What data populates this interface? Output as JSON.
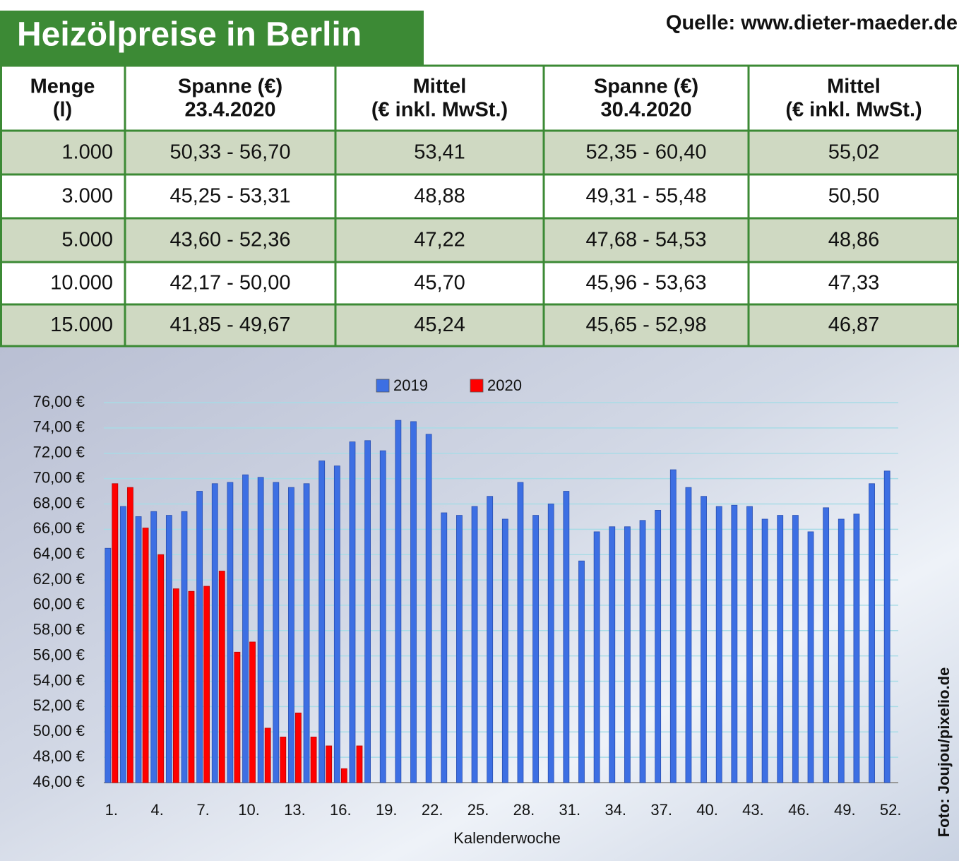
{
  "header": {
    "title": "Heizölpreise in Berlin",
    "source": "Quelle: www.dieter-maeder.de"
  },
  "table": {
    "header": [
      [
        "Menge",
        "(l)"
      ],
      [
        "Spanne (€)",
        "23.4.2020"
      ],
      [
        "Mittel",
        "(€ inkl. MwSt.)"
      ],
      [
        "Spanne (€)",
        "30.4.2020"
      ],
      [
        "Mittel",
        "(€ inkl. MwSt.)"
      ]
    ],
    "rows": [
      [
        "1.000",
        "50,33 - 56,70",
        "53,41",
        "52,35 - 60,40",
        "55,02"
      ],
      [
        "3.000",
        "45,25 - 53,31",
        "48,88",
        "49,31 - 55,48",
        "50,50"
      ],
      [
        "5.000",
        "43,60 - 52,36",
        "47,22",
        "47,68 - 54,53",
        "48,86"
      ],
      [
        "10.000",
        "42,17 - 50,00",
        "45,70",
        "45,96 - 53,63",
        "47,33"
      ],
      [
        "15.000",
        "41,85 - 49,67",
        "45,24",
        "45,65 - 52,98",
        "46,87"
      ]
    ]
  },
  "chart_data": {
    "type": "bar",
    "x_label": "Kalenderwoche",
    "categories": [
      "1.",
      null,
      null,
      "4.",
      null,
      null,
      "7.",
      null,
      null,
      "10.",
      null,
      null,
      "13.",
      null,
      null,
      "16.",
      null,
      null,
      "19.",
      null,
      null,
      "22.",
      null,
      null,
      "25.",
      null,
      null,
      "28.",
      null,
      null,
      "31.",
      null,
      null,
      "34.",
      null,
      null,
      "37.",
      null,
      null,
      "40.",
      null,
      null,
      "43.",
      null,
      null,
      "46.",
      null,
      null,
      "49.",
      null,
      null,
      "52."
    ],
    "series": [
      {
        "name": "2019",
        "color": "#3d6fe3",
        "values": [
          64.5,
          67.8,
          67.0,
          67.4,
          67.1,
          67.4,
          69.0,
          69.6,
          69.7,
          70.3,
          70.1,
          69.7,
          69.3,
          69.6,
          71.4,
          71.0,
          72.9,
          73.0,
          72.2,
          74.6,
          74.5,
          73.5,
          67.3,
          67.1,
          67.8,
          68.6,
          66.8,
          69.7,
          67.1,
          68.0,
          69.0,
          63.5,
          65.8,
          66.2,
          66.2,
          66.7,
          67.5,
          70.7,
          69.3,
          68.6,
          67.8,
          67.9,
          67.8,
          66.8,
          67.1,
          67.1,
          65.8,
          67.7,
          66.8,
          67.2,
          69.6,
          70.6
        ]
      },
      {
        "name": "2020",
        "color": "#ff0000",
        "values": [
          69.6,
          69.3,
          66.1,
          64.0,
          61.3,
          61.1,
          61.5,
          62.7,
          56.3,
          57.1,
          50.3,
          49.6,
          51.5,
          49.6,
          48.9,
          47.1,
          48.9,
          null,
          null,
          null,
          null,
          null,
          null,
          null,
          null,
          null,
          null,
          null,
          null,
          null,
          null,
          null,
          null,
          null,
          null,
          null,
          null,
          null,
          null,
          null,
          null,
          null,
          null,
          null,
          null,
          null,
          null,
          null,
          null,
          null,
          null,
          null
        ]
      }
    ],
    "ylim": [
      46,
      76
    ],
    "yticks": [
      {
        "value": 46,
        "label": "46,00 €"
      },
      {
        "value": 48,
        "label": "48,00 €"
      },
      {
        "value": 50,
        "label": "50,00 €"
      },
      {
        "value": 52,
        "label": "52,00 €"
      },
      {
        "value": 54,
        "label": "54,00 €"
      },
      {
        "value": 56,
        "label": "56,00 €"
      },
      {
        "value": 58,
        "label": "58,00 €"
      },
      {
        "value": 60,
        "label": "60,00 €"
      },
      {
        "value": 62,
        "label": "62,00 €"
      },
      {
        "value": 64,
        "label": "64,00 €"
      },
      {
        "value": 66,
        "label": "66,00 €"
      },
      {
        "value": 68,
        "label": "68,00 €"
      },
      {
        "value": 70,
        "label": "70,00 €"
      },
      {
        "value": 72,
        "label": "72,00 €"
      },
      {
        "value": 74,
        "label": "74,00 €"
      },
      {
        "value": 76,
        "label": "76,00 €"
      }
    ],
    "grid": true,
    "legend": "top"
  },
  "credit": "Foto: Joujou/pixelio.de"
}
